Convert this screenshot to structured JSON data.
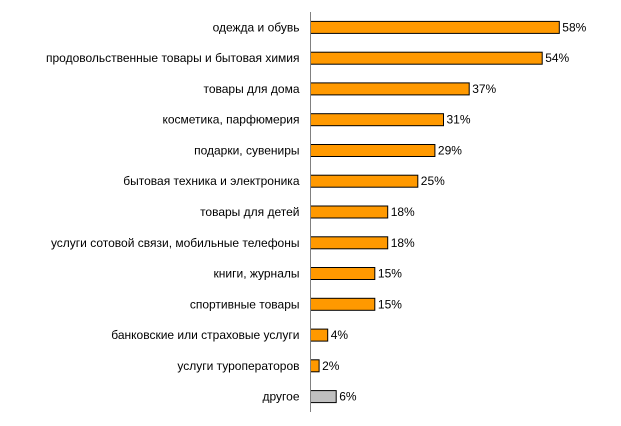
{
  "chart_data": {
    "type": "bar",
    "orientation": "horizontal",
    "categories": [
      "одежда и обувь",
      "продовольственные товары и бытовая химия",
      "товары для дома",
      "косметика, парфюмерия",
      "подарки, сувениры",
      "бытовая техника и электроника",
      "товары для детей",
      "услуги сотовой связи, мобильные телефоны",
      "книги, журналы",
      "спортивные товары",
      "банковские или страховые услуги",
      "услуги туроператоров",
      "другое"
    ],
    "values": [
      58,
      54,
      37,
      31,
      29,
      25,
      18,
      18,
      15,
      15,
      4,
      2,
      6
    ],
    "value_labels": [
      "58%",
      "54%",
      "37%",
      "31%",
      "29%",
      "25%",
      "18%",
      "18%",
      "15%",
      "15%",
      "4%",
      "2%",
      "6%"
    ],
    "xlim": [
      0,
      100
    ],
    "grid": false,
    "legend": "none",
    "colors": {
      "bar": "#FF9900",
      "bar_other": "#C0C0C0",
      "border": "#000000",
      "axis": "#808080"
    }
  }
}
